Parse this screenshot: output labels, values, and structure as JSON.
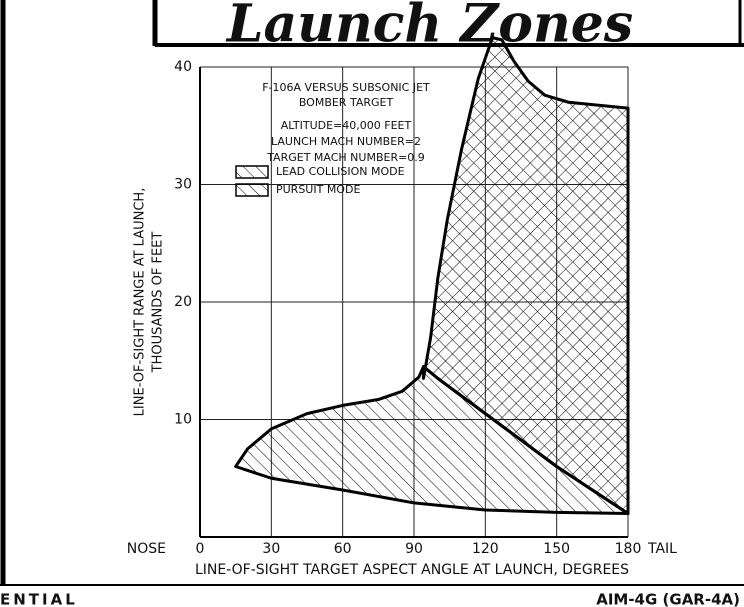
{
  "chart_data": {
    "type": "area",
    "title": "Launch Zones",
    "x_label": "LINE-OF-SIGHT TARGET ASPECT ANGLE AT LAUNCH, DEGREES",
    "y_label": [
      "LINE-OF-SIGHT RANGE AT LAUNCH,",
      "THOUSANDS OF FEET"
    ],
    "x_left_label": "NOSE",
    "x_right_label": "TAIL",
    "annotations": [
      "F-106A VERSUS SUBSONIC JET",
      "BOMBER TARGET",
      "ALTITUDE=40,000 FEET",
      "LAUNCH MACH NUMBER=2",
      "TARGET MACH NUMBER=0.9"
    ],
    "footer_left": "ENTIAL",
    "footer_right": "AIM-4G (GAR-4A)",
    "xlim": [
      0,
      180
    ],
    "ylim": [
      0,
      40
    ],
    "xticks": [
      0,
      30,
      60,
      90,
      120,
      150,
      180
    ],
    "yticks": [
      10,
      20,
      30,
      40
    ],
    "grid": true,
    "series": [
      {
        "name": "LEAD COLLISION MODE",
        "color": "#000",
        "hatch": "cross",
        "x": [
          94,
          97,
          100,
          104,
          110,
          117,
          123,
          127,
          132,
          138,
          145,
          155,
          165,
          180,
          180,
          150,
          120,
          100,
          94
        ],
        "values": [
          13.5,
          17,
          22,
          27,
          33,
          39,
          42.5,
          42.3,
          40.5,
          38.8,
          37.6,
          37,
          36.8,
          36.5,
          2,
          6,
          10.5,
          13.5,
          14.5
        ]
      },
      {
        "name": "PURSUIT MODE",
        "color": "#000",
        "hatch": "diagonal",
        "x": [
          15,
          20,
          30,
          45,
          60,
          75,
          85,
          92,
          94,
          100,
          120,
          150,
          180,
          150,
          120,
          90,
          60,
          30,
          15
        ],
        "values": [
          6,
          7.5,
          9.2,
          10.5,
          11.2,
          11.7,
          12.4,
          13.6,
          14.5,
          13.5,
          10.5,
          6,
          2,
          2.1,
          2.3,
          2.9,
          4,
          5,
          6
        ]
      }
    ]
  }
}
